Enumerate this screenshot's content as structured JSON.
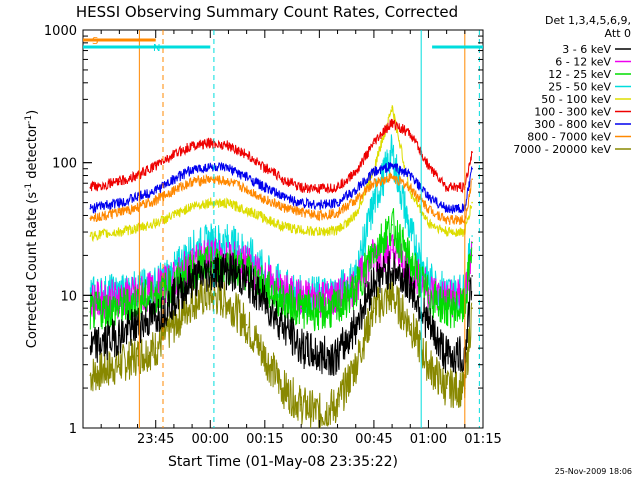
{
  "chart_data": {
    "type": "line",
    "title": "HESSI Observing Summary Count Rates, Corrected",
    "xlabel": "Start Time (01-May-08 23:35:22)",
    "ylabel": "Corrected Count Rate (s⁻¹ detector⁻¹)",
    "ylabel_parts": {
      "pre": "Corrected Count Rate (s",
      "sup1": "-1",
      "mid": " detector",
      "sup2": "-1",
      "post": ")"
    },
    "y_scale": "log",
    "ylim": [
      1,
      1000
    ],
    "xlim_minutes": [
      -10,
      100
    ],
    "x_ticks": [
      {
        "minute": 10,
        "label": "23:45"
      },
      {
        "minute": 25,
        "label": "00:00"
      },
      {
        "minute": 40,
        "label": "00:15"
      },
      {
        "minute": 55,
        "label": "00:30"
      },
      {
        "minute": 70,
        "label": "00:45"
      },
      {
        "minute": 85,
        "label": "01:00"
      },
      {
        "minute": 100,
        "label": "01:15"
      }
    ],
    "y_ticks": [
      {
        "value": 1,
        "label": "1"
      },
      {
        "value": 10,
        "label": "10"
      },
      {
        "value": 100,
        "label": "100"
      },
      {
        "value": 1000,
        "label": "1000"
      }
    ],
    "legend_header": [
      "Det 1,3,4,5,6,9,",
      "Att 0"
    ],
    "legend_position": "right",
    "series": [
      {
        "name": "3 - 6 keV",
        "color": "#000000",
        "x": [
          -8,
          0,
          5,
          10,
          15,
          20,
          25,
          30,
          35,
          40,
          45,
          50,
          55,
          60,
          65,
          70,
          75,
          80,
          85,
          90,
          95,
          97
        ],
        "y": [
          4,
          5,
          6,
          7,
          9.5,
          13,
          15,
          15.5,
          13,
          9,
          6,
          4,
          3.5,
          3.5,
          6,
          13,
          16,
          12,
          6,
          3.5,
          3.5,
          14
        ]
      },
      {
        "name": "6 - 12 keV",
        "color": "#ee00ee",
        "x": [
          -8,
          0,
          5,
          10,
          15,
          20,
          25,
          30,
          35,
          40,
          45,
          50,
          55,
          60,
          65,
          70,
          75,
          80,
          85,
          90,
          95,
          97
        ],
        "y": [
          9,
          9.5,
          10,
          11,
          13,
          17,
          19,
          19,
          17,
          13,
          10.5,
          9.5,
          9.5,
          9.5,
          12,
          20,
          22,
          16,
          11,
          9.5,
          9.5,
          20
        ]
      },
      {
        "name": "12 - 25 keV",
        "color": "#00dd00",
        "x": [
          -8,
          0,
          5,
          10,
          15,
          20,
          25,
          30,
          35,
          40,
          45,
          50,
          55,
          60,
          65,
          70,
          75,
          80,
          85,
          90,
          95,
          97
        ],
        "y": [
          7.5,
          8,
          9,
          10,
          12,
          15.5,
          17,
          17,
          15,
          11.5,
          9,
          8,
          7.5,
          8,
          11,
          22,
          34,
          18,
          10,
          8,
          8,
          25
        ]
      },
      {
        "name": "25 - 50 keV",
        "color": "#00dddd",
        "x": [
          -8,
          0,
          5,
          10,
          15,
          20,
          25,
          30,
          35,
          40,
          45,
          50,
          55,
          60,
          65,
          70,
          75,
          80,
          85,
          90,
          95,
          97
        ],
        "y": [
          10,
          10.5,
          11,
          12,
          15,
          22,
          25,
          25,
          21,
          15,
          11.5,
          10,
          10,
          10.5,
          14,
          50,
          120,
          30,
          13,
          10.5,
          10.5,
          28
        ]
      },
      {
        "name": "50 - 100 keV",
        "color": "#dddd00",
        "x": [
          -8,
          0,
          5,
          10,
          15,
          20,
          25,
          30,
          35,
          40,
          45,
          50,
          55,
          60,
          65,
          70,
          75,
          80,
          85,
          90,
          95,
          97
        ],
        "y": [
          28,
          30,
          32,
          35,
          40,
          47,
          50,
          49,
          44,
          38,
          33,
          31,
          30,
          31,
          40,
          90,
          260,
          60,
          35,
          30,
          30,
          50
        ]
      },
      {
        "name": "100 - 300 keV",
        "color": "#ee0000",
        "x": [
          -8,
          0,
          5,
          10,
          15,
          20,
          25,
          30,
          35,
          40,
          45,
          50,
          55,
          60,
          65,
          70,
          75,
          80,
          85,
          90,
          95,
          97
        ],
        "y": [
          65,
          72,
          80,
          95,
          115,
          135,
          140,
          135,
          115,
          92,
          75,
          65,
          63,
          65,
          85,
          140,
          200,
          165,
          95,
          65,
          65,
          120
        ]
      },
      {
        "name": "300 - 800 keV",
        "color": "#0000ee",
        "x": [
          -8,
          0,
          5,
          10,
          15,
          20,
          25,
          30,
          35,
          40,
          45,
          50,
          55,
          60,
          65,
          70,
          75,
          80,
          85,
          90,
          95,
          97
        ],
        "y": [
          45,
          50,
          55,
          62,
          75,
          88,
          93,
          90,
          78,
          65,
          55,
          50,
          48,
          50,
          62,
          85,
          95,
          80,
          55,
          45,
          45,
          90
        ]
      },
      {
        "name": "800 - 7000 keV",
        "color": "#ff8800",
        "x": [
          -8,
          0,
          5,
          10,
          15,
          20,
          25,
          30,
          35,
          40,
          45,
          50,
          55,
          60,
          65,
          70,
          75,
          80,
          85,
          90,
          95,
          97
        ],
        "y": [
          38,
          42,
          46,
          52,
          62,
          72,
          75,
          72,
          63,
          53,
          46,
          42,
          40,
          42,
          52,
          70,
          78,
          65,
          45,
          37,
          37,
          75
        ]
      },
      {
        "name": "7000 - 20000 keV",
        "color": "#888800",
        "x": [
          -8,
          0,
          5,
          10,
          15,
          20,
          25,
          30,
          35,
          40,
          45,
          50,
          55,
          60,
          65,
          70,
          75,
          80,
          85,
          90,
          95,
          97
        ],
        "y": [
          2.5,
          3,
          3.5,
          4,
          6,
          9,
          10,
          9,
          6,
          3.5,
          2,
          1.5,
          1.3,
          1.5,
          3,
          8,
          10,
          6,
          3,
          2,
          2,
          8
        ]
      }
    ],
    "attenuator_flags": [
      {
        "label": "S",
        "color": "#ff8800",
        "start": -10,
        "end": 10
      },
      {
        "label": "N",
        "color": "#00dddd",
        "start": -10,
        "end": 25
      },
      {
        "label": "",
        "color": "#00dddd",
        "start": 86,
        "end": 100
      }
    ],
    "markers": [
      {
        "minute": 5.5,
        "color": "#ff8800",
        "style": "solid"
      },
      {
        "minute": 12,
        "color": "#ff8800",
        "style": "dashed"
      },
      {
        "minute": 26,
        "color": "#00dddd",
        "style": "dashed"
      },
      {
        "minute": 83,
        "color": "#00dddd",
        "style": "solid"
      },
      {
        "minute": 95,
        "color": "#ff8800",
        "style": "solid"
      },
      {
        "minute": 99,
        "color": "#00dddd",
        "style": "dashed"
      }
    ]
  },
  "footer_timestamp": "25-Nov-2009 18:06"
}
